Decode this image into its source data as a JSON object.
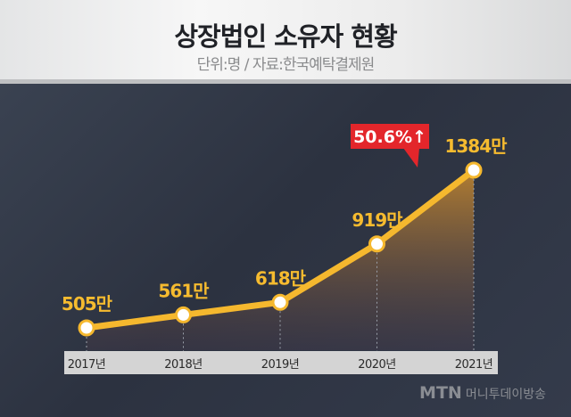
{
  "header": {
    "title": "상장법인 소유자 현황",
    "subtitle": "단위:명 / 자료:한국예탁결제원"
  },
  "callout": {
    "text": "50.6%↑",
    "color": "#e3262b"
  },
  "logo": {
    "brand": "MTN",
    "name": "머니투데이방송"
  },
  "colors": {
    "line": "#f5b82e",
    "label": "#f6bb2f"
  },
  "chart_data": {
    "type": "line",
    "title": "상장법인 소유자 현황",
    "categories": [
      "2017년",
      "2018년",
      "2019년",
      "2020년",
      "2021년"
    ],
    "values": [
      505,
      561,
      618,
      919,
      1384
    ],
    "data_labels": [
      "505만",
      "561만",
      "618만",
      "919만",
      "1384만"
    ],
    "unit": "만 명",
    "annotations": [
      {
        "between": [
          "2020년",
          "2021년"
        ],
        "text": "50.6%↑"
      }
    ]
  }
}
